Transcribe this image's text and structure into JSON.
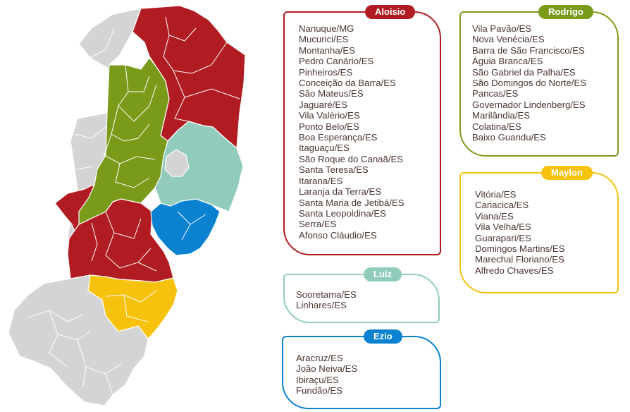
{
  "colors": {
    "aloisio": "#b01c22",
    "rodrigo": "#7a9a1a",
    "luiz": "#91cbbc",
    "ezio": "#0a82cf",
    "maylon": "#f6c20d",
    "other": "#d4d4d4",
    "text": "#4a3630"
  },
  "groups": {
    "aloisio": {
      "title": "Aloisio",
      "cities": [
        "Nanuque/MG",
        "Mucurici/ES",
        "Montanha/ES",
        "Pedro Canário/ES",
        "Pinheiros/ES",
        "Conceição da Barra/ES",
        "São Mateus/ES",
        "Jaguaré/ES",
        "Vila Valério/ES",
        "Ponto Belo/ES",
        "Boa Esperança/ES",
        "Itaguaçu/ES",
        "São Roque do Canaã/ES",
        "Santa Teresa/ES",
        "Itarana/ES",
        "Laranja da Terra/ES",
        "Santa Maria de Jetibá/ES",
        "Santa Leopoldina/ES",
        "Serra/ES",
        "Afonso Cláudio/ES"
      ]
    },
    "rodrigo": {
      "title": "Rodrigo",
      "cities": [
        "Vila Pavão/ES",
        "Nova Venécia/ES",
        "Barra de São Francisco/ES",
        "Águia Branca/ES",
        "São Gabriel da Palha/ES",
        "São Domingos do Norte/ES",
        "Pancas/ES",
        "Governador Lindenberg/ES",
        "Marilândia/ES",
        "Colatina/ES",
        "Baixo Guandu/ES"
      ]
    },
    "maylon": {
      "title": "Maylon",
      "cities": [
        "Vitória/ES",
        "Cariacica/ES",
        "Viana/ES",
        "Vila Velha/ES",
        "Guarapari/ES",
        "Domingos Martins/ES",
        "Marechal Floriano/ES",
        "Alfredo Chaves/ES"
      ]
    },
    "luiz": {
      "title": "Luiz",
      "cities": [
        "Sooretama/ES",
        "Linhares/ES"
      ]
    },
    "ezio": {
      "title": "Ezio",
      "cities": [
        "Aracruz/ES",
        "João Neiva/ES",
        "Ibiraçu/ES",
        "Fundão/ES"
      ]
    }
  }
}
